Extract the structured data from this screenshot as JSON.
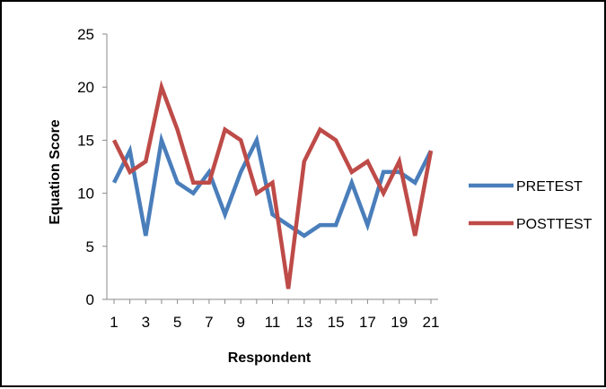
{
  "chart_data": {
    "type": "line",
    "xlabel": "Respondent",
    "ylabel": "Equation Score",
    "ylim": [
      0,
      25
    ],
    "yticks": [
      0,
      5,
      10,
      15,
      20,
      25
    ],
    "xticks": [
      1,
      3,
      5,
      7,
      9,
      11,
      13,
      15,
      17,
      19,
      21
    ],
    "x": [
      1,
      2,
      3,
      4,
      5,
      6,
      7,
      8,
      9,
      10,
      11,
      12,
      13,
      14,
      15,
      16,
      17,
      18,
      19,
      20,
      21
    ],
    "grid": false,
    "legend_position": "right",
    "series": [
      {
        "name": "PRETEST",
        "color": "#4a7ebb",
        "values": [
          11,
          14,
          6,
          15,
          11,
          10,
          12,
          8,
          12,
          15,
          8,
          7,
          6,
          7,
          7,
          11,
          7,
          12,
          12,
          11,
          14
        ]
      },
      {
        "name": "POSTTEST",
        "color": "#be4b48",
        "values": [
          15,
          12,
          13,
          20,
          16,
          11,
          11,
          16,
          15,
          10,
          11,
          1,
          13,
          16,
          15,
          12,
          13,
          10,
          13,
          6,
          14
        ]
      }
    ]
  }
}
